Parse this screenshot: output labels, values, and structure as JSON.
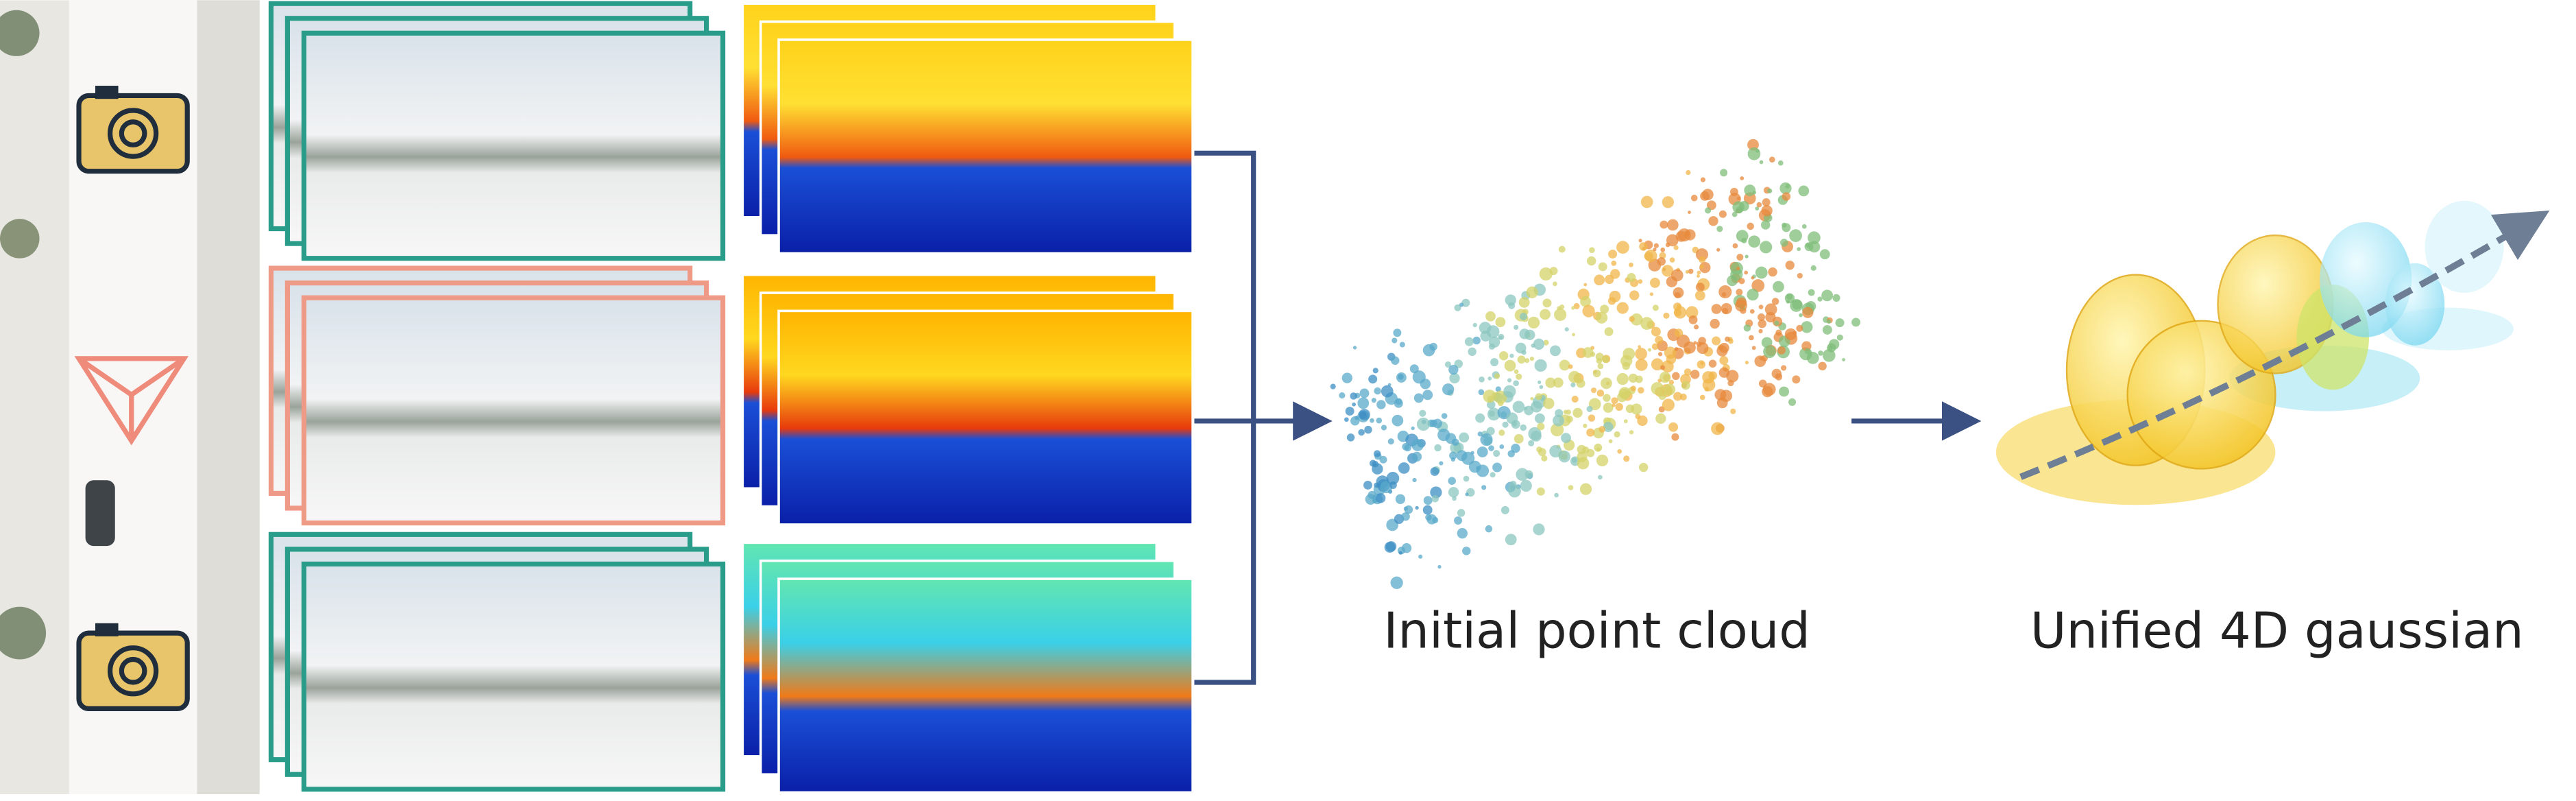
{
  "labels": {
    "point_cloud": "Initial point cloud",
    "gaussian": "Unified 4D gaussian"
  }
}
